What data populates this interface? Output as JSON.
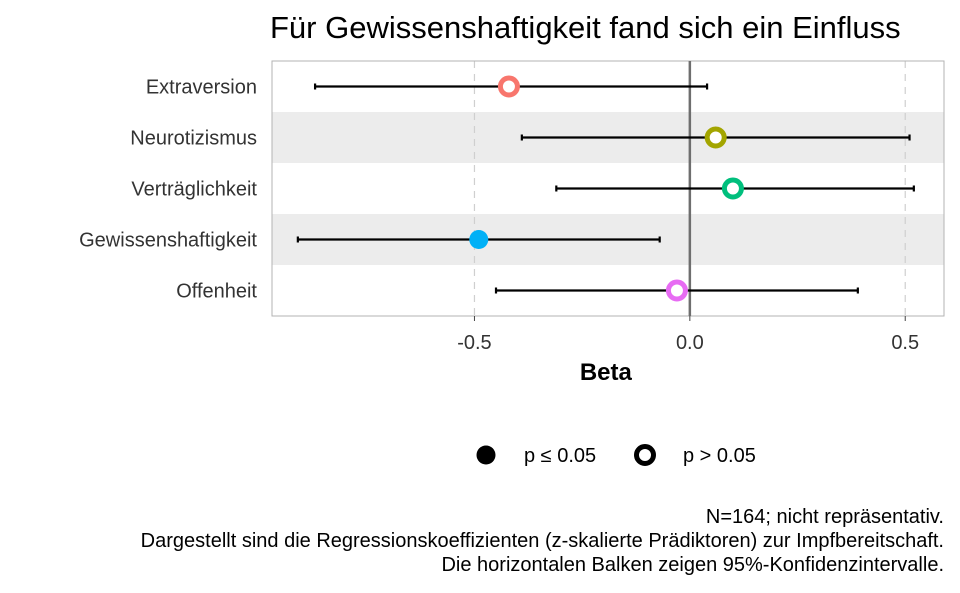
{
  "chart_data": {
    "type": "scatter",
    "title": "Für Gewissenshaftigkeit fand sich ein Einfluss",
    "xlabel": "Beta",
    "ylabel": "",
    "xlim": [
      -0.97,
      0.59
    ],
    "xticks": [
      -0.5,
      0.0,
      0.5
    ],
    "xtick_labels": [
      "-0.5",
      "0.0",
      "0.5"
    ],
    "reference_line": 0,
    "grid": "vertical dashed at ±0.5, alternating row shading",
    "categories": [
      "Extraversion",
      "Neurotizismus",
      "Verträglichkeit",
      "Gewissenshaftigkeit",
      "Offenheit"
    ],
    "points": [
      {
        "label": "Extraversion",
        "beta": -0.42,
        "ci_low": -0.87,
        "ci_high": 0.04,
        "significant": false,
        "color": "#F8766D"
      },
      {
        "label": "Neurotizismus",
        "beta": 0.06,
        "ci_low": -0.39,
        "ci_high": 0.51,
        "significant": false,
        "color": "#A3A500"
      },
      {
        "label": "Verträglichkeit",
        "beta": 0.1,
        "ci_low": -0.31,
        "ci_high": 0.52,
        "significant": false,
        "color": "#00BF7D"
      },
      {
        "label": "Gewissenshaftigkeit",
        "beta": -0.49,
        "ci_low": -0.91,
        "ci_high": -0.07,
        "significant": true,
        "color": "#00B0F6"
      },
      {
        "label": "Offenheit",
        "beta": -0.03,
        "ci_low": -0.45,
        "ci_high": 0.39,
        "significant": false,
        "color": "#E76BF3"
      }
    ],
    "legend": {
      "position": "bottom",
      "items": [
        {
          "label": "p ≤ 0.05",
          "marker": "filled-circle"
        },
        {
          "label": "p > 0.05",
          "marker": "open-circle"
        }
      ]
    },
    "caption": [
      "N=164; nicht repräsentativ.",
      "Dargestellt sind die Regressionskoeffizienten (z-skalierte Prädiktoren) zur Impfbereitschaft.",
      "Die horizontalen Balken zeigen 95%-Konfidenzintervalle."
    ]
  }
}
